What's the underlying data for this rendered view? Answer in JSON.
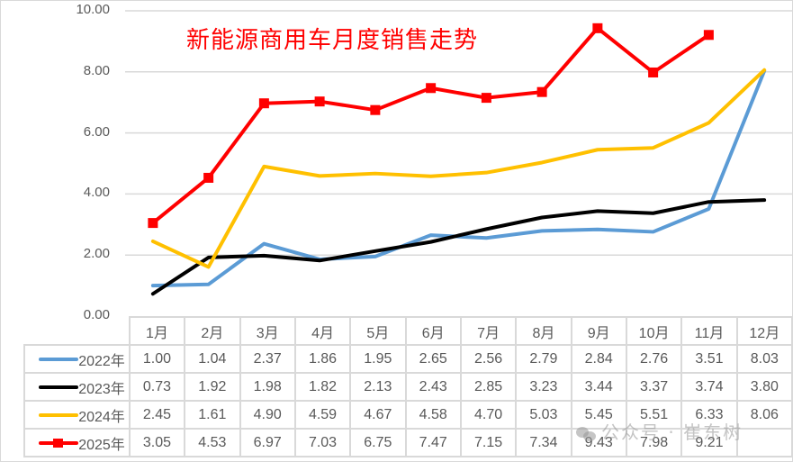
{
  "chart_data": {
    "type": "line",
    "title": "新能源商用车月度销售走势",
    "xlabel": "",
    "ylabel": "",
    "ylim": [
      0,
      10
    ],
    "yticks": [
      "0.00",
      "2.00",
      "4.00",
      "6.00",
      "8.00",
      "10.00"
    ],
    "grid": true,
    "legend_position": "data-table-left",
    "categories": [
      "1月",
      "2月",
      "3月",
      "4月",
      "5月",
      "6月",
      "7月",
      "8月",
      "9月",
      "10月",
      "11月",
      "12月"
    ],
    "series": [
      {
        "name": "2022年",
        "color": "#5b9bd5",
        "marker": "none",
        "values": [
          1.0,
          1.04,
          2.37,
          1.86,
          1.95,
          2.65,
          2.56,
          2.79,
          2.84,
          2.76,
          3.51,
          8.03
        ]
      },
      {
        "name": "2023年",
        "color": "#000000",
        "marker": "none",
        "values": [
          0.73,
          1.92,
          1.98,
          1.82,
          2.13,
          2.43,
          2.85,
          3.23,
          3.44,
          3.37,
          3.74,
          3.8
        ]
      },
      {
        "name": "2024年",
        "color": "#ffc000",
        "marker": "none",
        "values": [
          2.45,
          1.61,
          4.9,
          4.59,
          4.67,
          4.58,
          4.7,
          5.03,
          5.45,
          5.51,
          6.33,
          8.06
        ]
      },
      {
        "name": "2025年",
        "color": "#ff0000",
        "marker": "square",
        "values": [
          3.05,
          4.53,
          6.97,
          7.03,
          6.75,
          7.47,
          7.15,
          7.34,
          9.43,
          7.98,
          9.21,
          null
        ]
      }
    ],
    "table_values": {
      "2022年": [
        "1.00",
        "1.04",
        "2.37",
        "1.86",
        "1.95",
        "2.65",
        "2.56",
        "2.79",
        "2.84",
        "2.76",
        "3.51",
        "8.03"
      ],
      "2023年": [
        "0.73",
        "1.92",
        "1.98",
        "1.82",
        "2.13",
        "2.43",
        "2.85",
        "3.23",
        "3.44",
        "3.37",
        "3.74",
        "3.80"
      ],
      "2024年": [
        "2.45",
        "1.61",
        "4.90",
        "4.59",
        "4.67",
        "4.58",
        "4.70",
        "5.03",
        "5.45",
        "5.51",
        "6.33",
        "8.06"
      ],
      "2025年": [
        "3.05",
        "4.53",
        "6.97",
        "7.03",
        "6.75",
        "7.47",
        "7.15",
        "7.34",
        "9.43",
        "7.98",
        "9.21",
        ""
      ]
    }
  },
  "watermark": {
    "text": "公众号 · 崔东树",
    "icon": "wechat-icon"
  }
}
